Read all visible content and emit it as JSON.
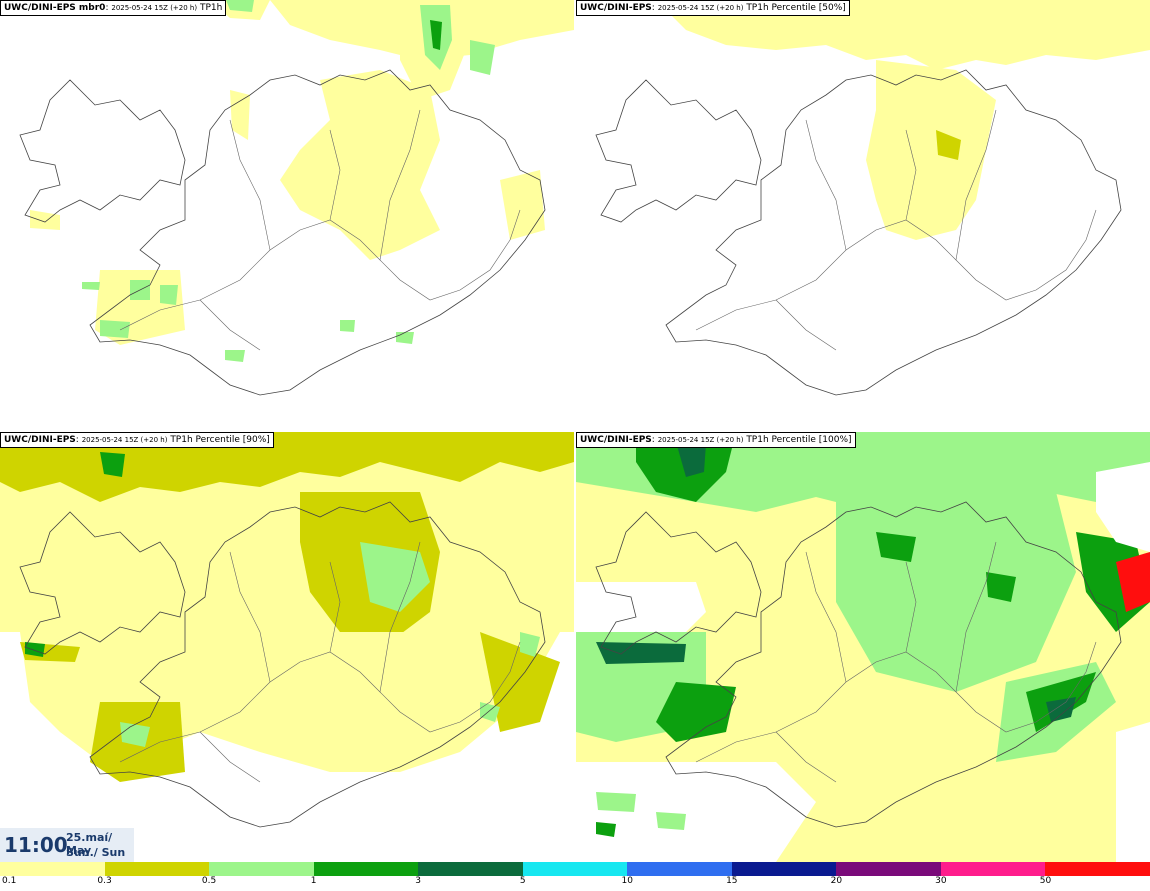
{
  "panels": [
    {
      "title_bold": "UWC/DINI-EPS mbr0",
      "title_sub": "2025-05-24 15Z (+20 h)",
      "title_rest": "TP1h"
    },
    {
      "title_bold": "UWC/DINI-EPS",
      "title_sub": "2025-05-24 15Z (+20 h)",
      "title_rest": "TP1h Percentile [50%]"
    },
    {
      "title_bold": "UWC/DINI-EPS",
      "title_sub": "2025-05-24 15Z (+20 h)",
      "title_rest": "TP1h Percentile [90%]"
    },
    {
      "title_bold": "UWC/DINI-EPS",
      "title_sub": "2025-05-24 15Z (+20 h)",
      "title_rest": "TP1h Percentile [100%]"
    }
  ],
  "time": {
    "clock": "11:00",
    "date_line1": "25.maí/ May",
    "date_line2": "Sun./ Sun"
  },
  "legend": {
    "labels": [
      "0.1",
      "0.3",
      "0.5",
      "1",
      "3",
      "5",
      "10",
      "15",
      "20",
      "30",
      "50"
    ],
    "colors": [
      "#ffff9e",
      "#cfd400",
      "#9cf58a",
      "#0ca00f",
      "#0b6b3c",
      "#17e7f0",
      "#2f6ef0",
      "#0a1a90",
      "#7a0a7a",
      "#ff1d8c",
      "#ff0e0e"
    ]
  },
  "colors": {
    "light_yellow": "#ffff9e",
    "yellow_green": "#cfd400",
    "light_green": "#9cf58a",
    "green": "#0ca00f",
    "dark_green": "#0b6b3c"
  }
}
